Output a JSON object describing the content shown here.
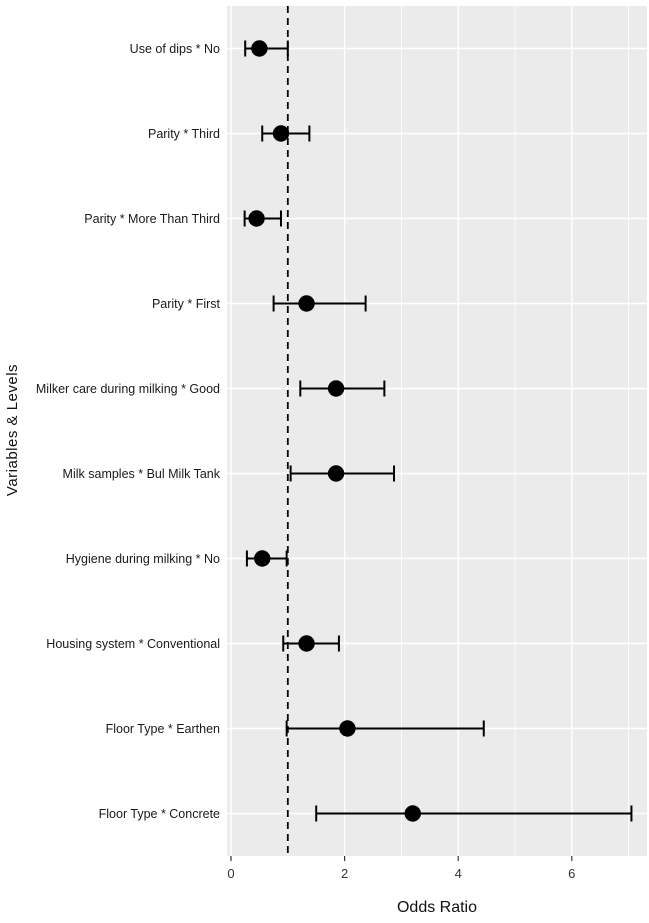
{
  "chart_data": {
    "type": "scatter",
    "subtype": "forest-plot",
    "title": "",
    "xlabel": "Odds Ratio",
    "ylabel": "Variables & Levels",
    "xlim": [
      -0.1,
      7.35
    ],
    "x_ticks": [
      0,
      2,
      4,
      6
    ],
    "x_minor_ticks": [
      1,
      3,
      5,
      7
    ],
    "reference_line": {
      "x": 1,
      "style": "dashed",
      "color": "#000000"
    },
    "panel_background": "#ebebeb",
    "gridline_color": "#ffffff",
    "point_color": "#000000",
    "legend": "none",
    "series": [
      {
        "label": "Use of dips * No",
        "or": 0.5,
        "ci_low": 0.25,
        "ci_high": 1.0
      },
      {
        "label": "Parity * Third",
        "or": 0.88,
        "ci_low": 0.55,
        "ci_high": 1.38
      },
      {
        "label": "Parity * More Than Third",
        "or": 0.45,
        "ci_low": 0.24,
        "ci_high": 0.88
      },
      {
        "label": "Parity * First",
        "or": 1.33,
        "ci_low": 0.75,
        "ci_high": 2.37
      },
      {
        "label": "Milker care during milking * Good",
        "or": 1.85,
        "ci_low": 1.22,
        "ci_high": 2.7
      },
      {
        "label": "Milk samples * Bul Milk Tank",
        "or": 1.85,
        "ci_low": 1.05,
        "ci_high": 2.87
      },
      {
        "label": "Hygiene during milking * No",
        "or": 0.55,
        "ci_low": 0.28,
        "ci_high": 0.98
      },
      {
        "label": "Housing system * Conventional",
        "or": 1.33,
        "ci_low": 0.92,
        "ci_high": 1.9
      },
      {
        "label": "Floor Type * Earthen",
        "or": 2.05,
        "ci_low": 0.98,
        "ci_high": 4.45
      },
      {
        "label": "Floor Type * Concrete",
        "or": 3.2,
        "ci_low": 1.5,
        "ci_high": 7.05
      }
    ]
  }
}
